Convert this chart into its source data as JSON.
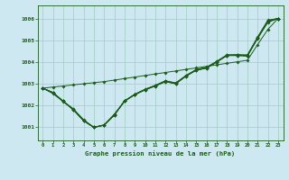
{
  "title": "Graphe pression niveau de la mer (hPa)",
  "bg_color": "#cde8f0",
  "grid_color": "#9ecfbe",
  "line_color": "#1a5c1a",
  "xlim": [
    -0.5,
    23.5
  ],
  "ylim": [
    1000.4,
    1006.6
  ],
  "yticks": [
    1001,
    1002,
    1003,
    1004,
    1005,
    1006
  ],
  "xticks": [
    0,
    1,
    2,
    3,
    4,
    5,
    6,
    7,
    8,
    9,
    10,
    11,
    12,
    13,
    14,
    15,
    16,
    17,
    18,
    19,
    20,
    21,
    22,
    23
  ],
  "series": [
    [
      1002.8,
      1002.6,
      1002.2,
      1001.85,
      1001.35,
      1001.0,
      1001.1,
      1001.55,
      1002.2,
      1002.5,
      1002.72,
      1002.9,
      1003.1,
      1003.0,
      1003.35,
      1003.63,
      1003.73,
      1004.0,
      1004.3,
      1004.32,
      1004.28,
      1005.12,
      1005.9,
      1006.0
    ],
    [
      1002.8,
      1002.55,
      1002.18,
      1001.83,
      1001.32,
      1001.0,
      1001.12,
      1001.57,
      1002.22,
      1002.51,
      1002.73,
      1002.91,
      1003.12,
      1003.02,
      1003.38,
      1003.65,
      1003.75,
      1004.02,
      1004.32,
      1004.32,
      1004.3,
      1005.1,
      1005.88,
      1006.0
    ],
    [
      1002.8,
      1002.58,
      1002.2,
      1001.82,
      1001.3,
      1001.0,
      1001.1,
      1001.57,
      1002.22,
      1002.52,
      1002.75,
      1002.92,
      1003.13,
      1003.03,
      1003.36,
      1003.62,
      1003.72,
      1004.0,
      1004.3,
      1004.3,
      1004.28,
      1005.1,
      1005.85,
      1006.0
    ],
    [
      1002.8,
      1002.6,
      1002.2,
      1001.8,
      1001.3,
      1001.0,
      1001.1,
      1001.6,
      1002.2,
      1002.5,
      1002.72,
      1002.9,
      1003.1,
      1003.0,
      1003.35,
      1003.63,
      1003.72,
      1004.0,
      1004.3,
      1004.3,
      1004.28,
      1005.08,
      1005.82,
      1006.0
    ],
    [
      1002.8,
      1002.6,
      1002.2,
      1001.8,
      1001.3,
      1001.0,
      1001.1,
      1001.6,
      1002.2,
      1002.52,
      1002.74,
      1002.93,
      1003.14,
      1003.04,
      1003.38,
      1003.65,
      1003.76,
      1004.03,
      1004.33,
      1004.34,
      1004.33,
      1005.15,
      1005.92,
      1006.0
    ]
  ],
  "straight_line": [
    1002.8,
    1002.85,
    1002.9,
    1002.95,
    1003.0,
    1003.05,
    1003.1,
    1003.17,
    1003.24,
    1003.31,
    1003.38,
    1003.45,
    1003.52,
    1003.59,
    1003.66,
    1003.73,
    1003.8,
    1003.87,
    1003.94,
    1004.01,
    1004.08,
    1004.8,
    1005.5,
    1006.0
  ]
}
